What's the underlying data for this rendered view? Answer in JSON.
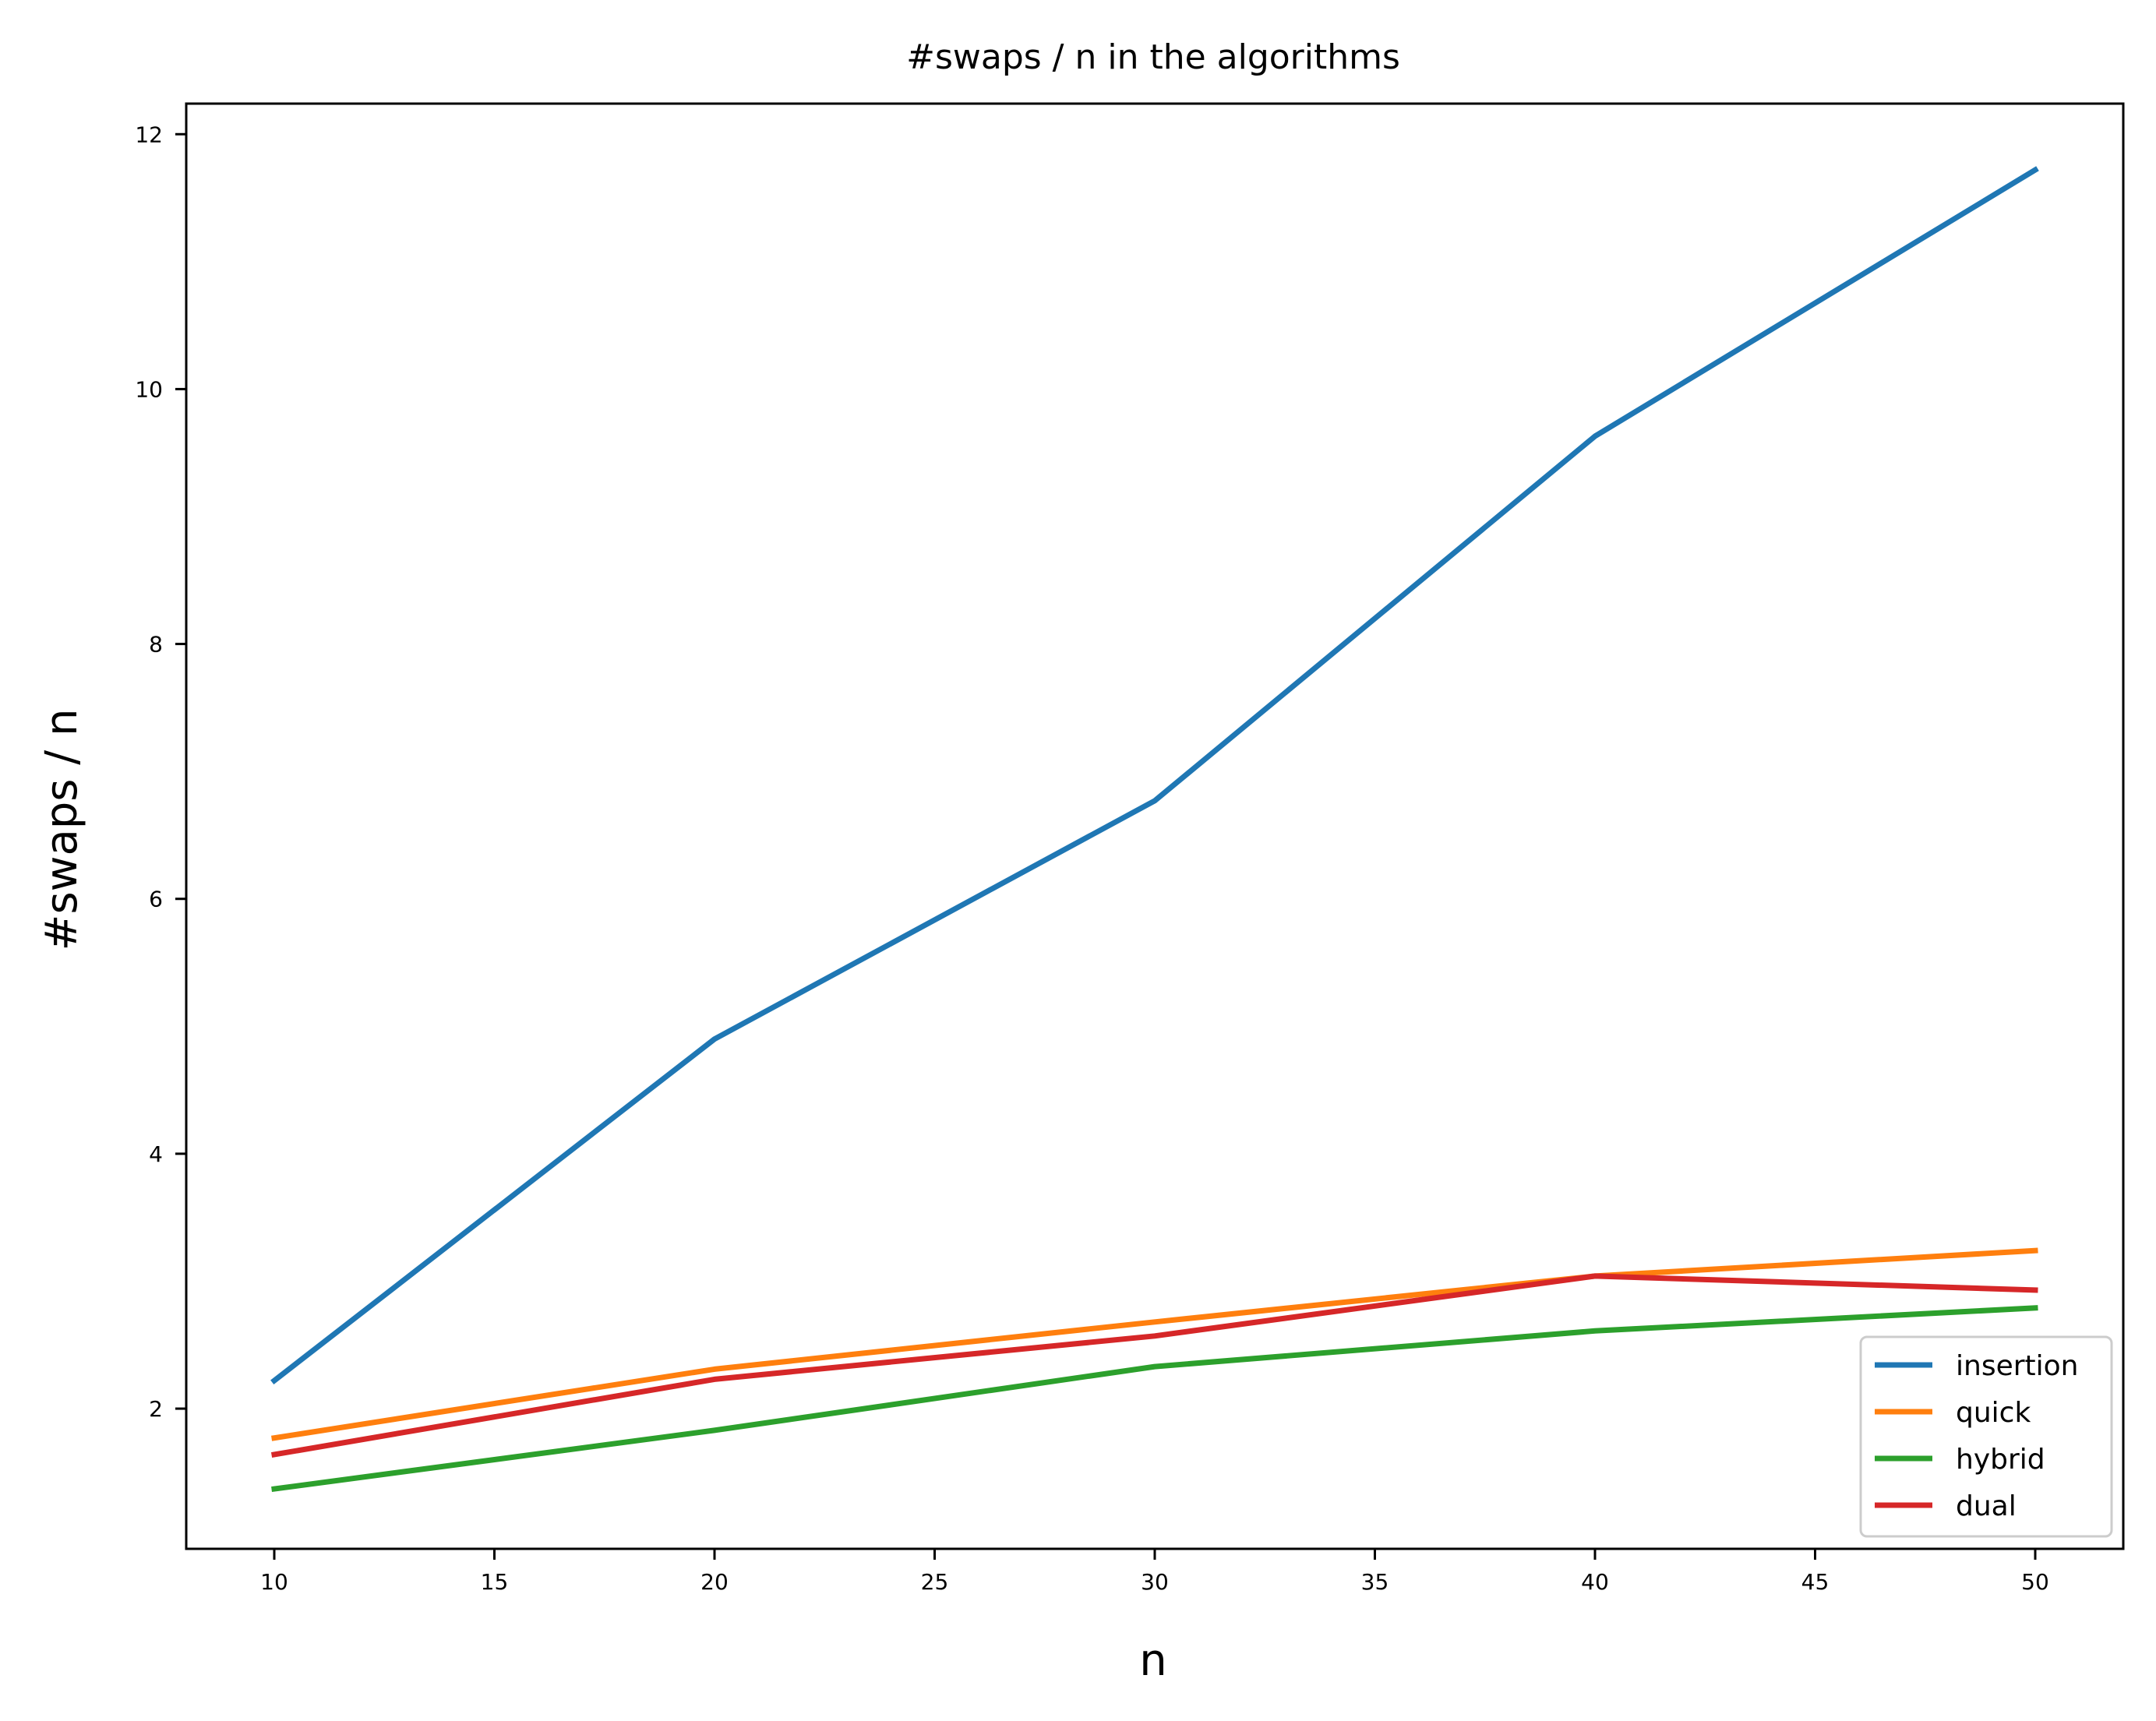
{
  "chart_data": {
    "type": "line",
    "title": "#swaps / n in the algorithms",
    "xlabel": "n",
    "ylabel": "#swaps / n",
    "x": [
      10,
      20,
      30,
      40,
      50
    ],
    "xlim": [
      8,
      52
    ],
    "ylim": [
      0.9,
      12.24
    ],
    "xticks": [
      10,
      15,
      20,
      25,
      30,
      35,
      40,
      45,
      50
    ],
    "yticks": [
      2,
      4,
      6,
      8,
      10,
      12
    ],
    "grid": false,
    "legend_position": "lower right",
    "series": [
      {
        "name": "insertion",
        "color": "#1f77b4",
        "values": [
          2.22,
          4.9,
          6.77,
          9.63,
          11.72
        ]
      },
      {
        "name": "quick",
        "color": "#ff7f0e",
        "values": [
          1.77,
          2.31,
          2.68,
          3.04,
          3.24
        ]
      },
      {
        "name": "hybrid",
        "color": "#2ca02c",
        "values": [
          1.37,
          1.83,
          2.33,
          2.61,
          2.79
        ]
      },
      {
        "name": "dual",
        "color": "#d62728",
        "values": [
          1.64,
          2.23,
          2.57,
          3.04,
          2.93
        ]
      }
    ]
  }
}
